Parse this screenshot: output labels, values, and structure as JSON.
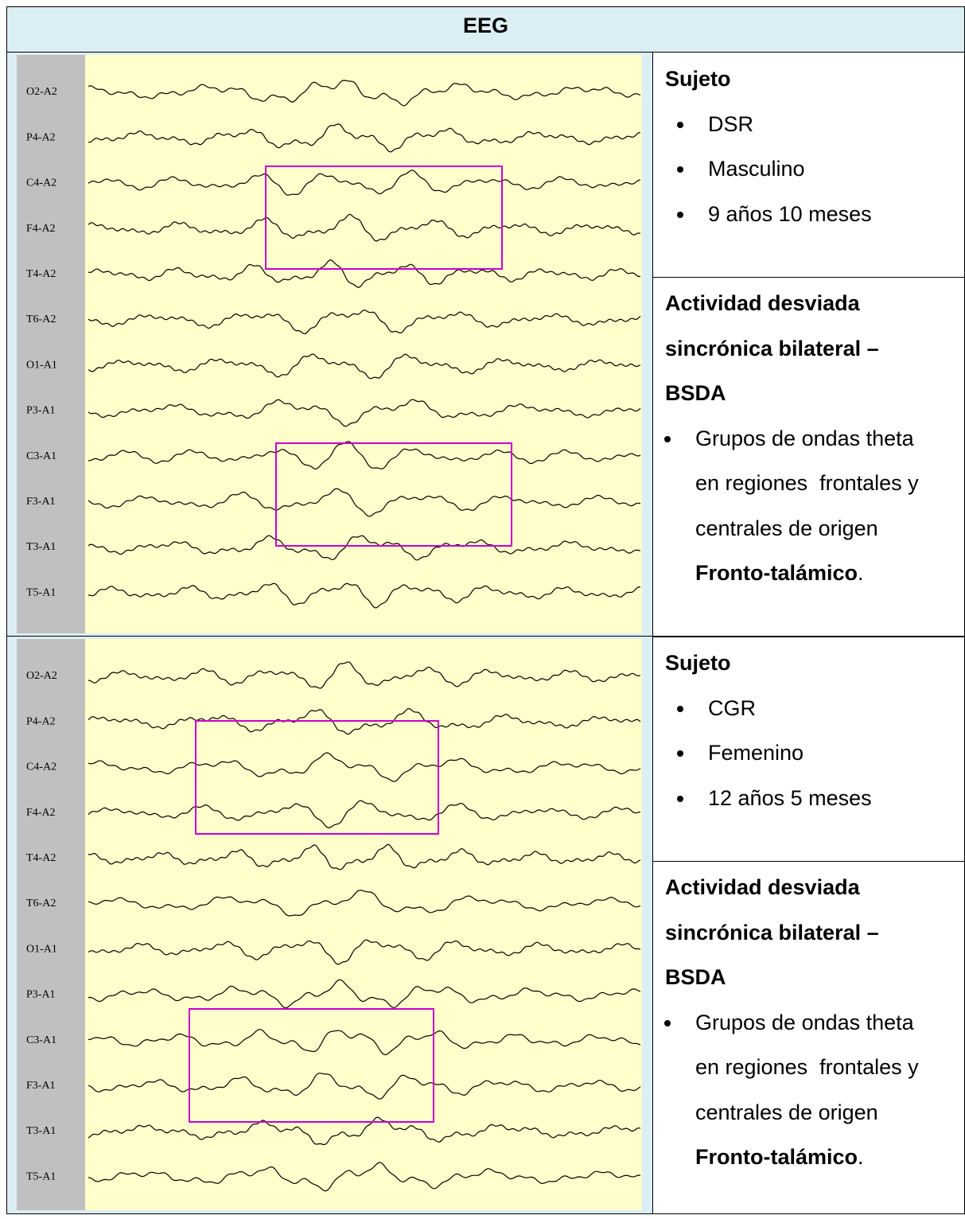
{
  "header": {
    "title": "EEG"
  },
  "rows": [
    {
      "channels": [
        "O2-A2",
        "P4-A2",
        "C4-A2",
        "F4-A2",
        "T4-A2",
        "T6-A2",
        "O1-A1",
        "P3-A1",
        "C3-A1",
        "F3-A1",
        "T3-A1",
        "T5-A1"
      ],
      "subject": {
        "heading": "Sujeto",
        "items": [
          "DSR",
          "Masculino",
          "9 años 10 meses"
        ]
      },
      "activity": {
        "heading": "Actividad desviada sincrónica bilateral – BSDA",
        "items": [
          {
            "text": "Grupos de ondas theta en regiones  frontales y centrales de origen ",
            "bold": "Fronto-talámico",
            "tail": "."
          }
        ]
      }
    },
    {
      "channels": [
        "O2-A2",
        "P4-A2",
        "C4-A2",
        "F4-A2",
        "T4-A2",
        "T6-A2",
        "O1-A1",
        "P3-A1",
        "C3-A1",
        "F3-A1",
        "T3-A1",
        "T5-A1"
      ],
      "subject": {
        "heading": "Sujeto",
        "items": [
          "CGR",
          "Femenino",
          "12 años 5 meses"
        ]
      },
      "activity": {
        "heading": "Actividad desviada sincrónica bilateral – BSDA",
        "items": [
          {
            "text": "Grupos de ondas theta en regiones  frontales y centrales de origen ",
            "bold": "Fronto-talámico",
            "tail": "."
          }
        ]
      }
    }
  ]
}
